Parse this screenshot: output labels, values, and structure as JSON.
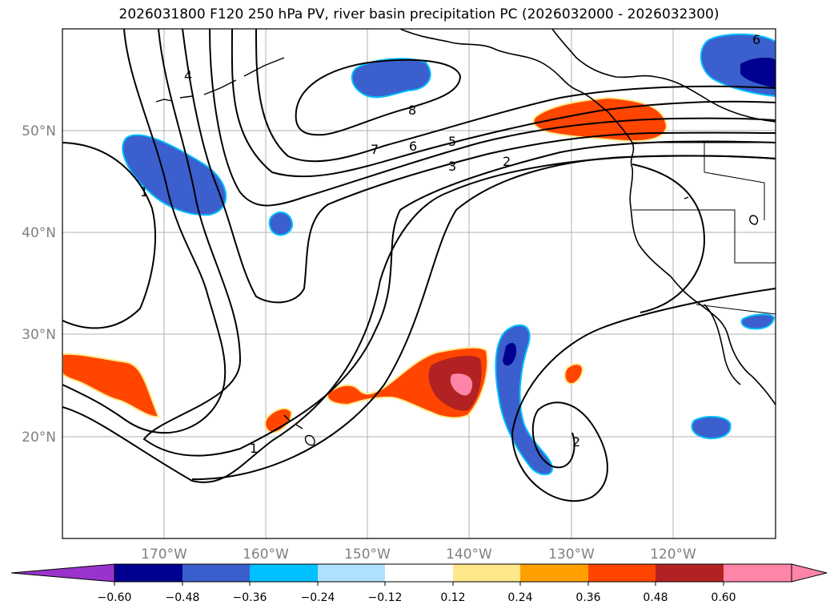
{
  "title": "2026031800 F120 250 hPa PV, river basin precipitation PC (2026032000 - 2026032300)",
  "map": {
    "lat_labels": [
      "50°N",
      "40°N",
      "30°N",
      "20°N"
    ],
    "lon_labels": [
      "170°W",
      "160°W",
      "150°W",
      "140°W",
      "130°W",
      "120°W"
    ],
    "contour_labels": [
      "4",
      "8",
      "7",
      "6",
      "5",
      "3",
      "2",
      "1",
      "1",
      "2",
      "6"
    ],
    "colors": {
      "land_line": "#000000",
      "grid": "#b0b0b0",
      "contour": "#000000"
    }
  },
  "colorbar": {
    "ticks": [
      "−0.60",
      "−0.48",
      "−0.36",
      "−0.24",
      "−0.12",
      "0.12",
      "0.24",
      "0.36",
      "0.48",
      "0.60"
    ],
    "colors": [
      "#9933cc",
      "#000090",
      "#3b5fcc",
      "#00bfff",
      "#b0e0ff",
      "#ffffff",
      "#ffe88a",
      "#ffa000",
      "#ff4500",
      "#b22222",
      "#ff85a8"
    ]
  }
}
